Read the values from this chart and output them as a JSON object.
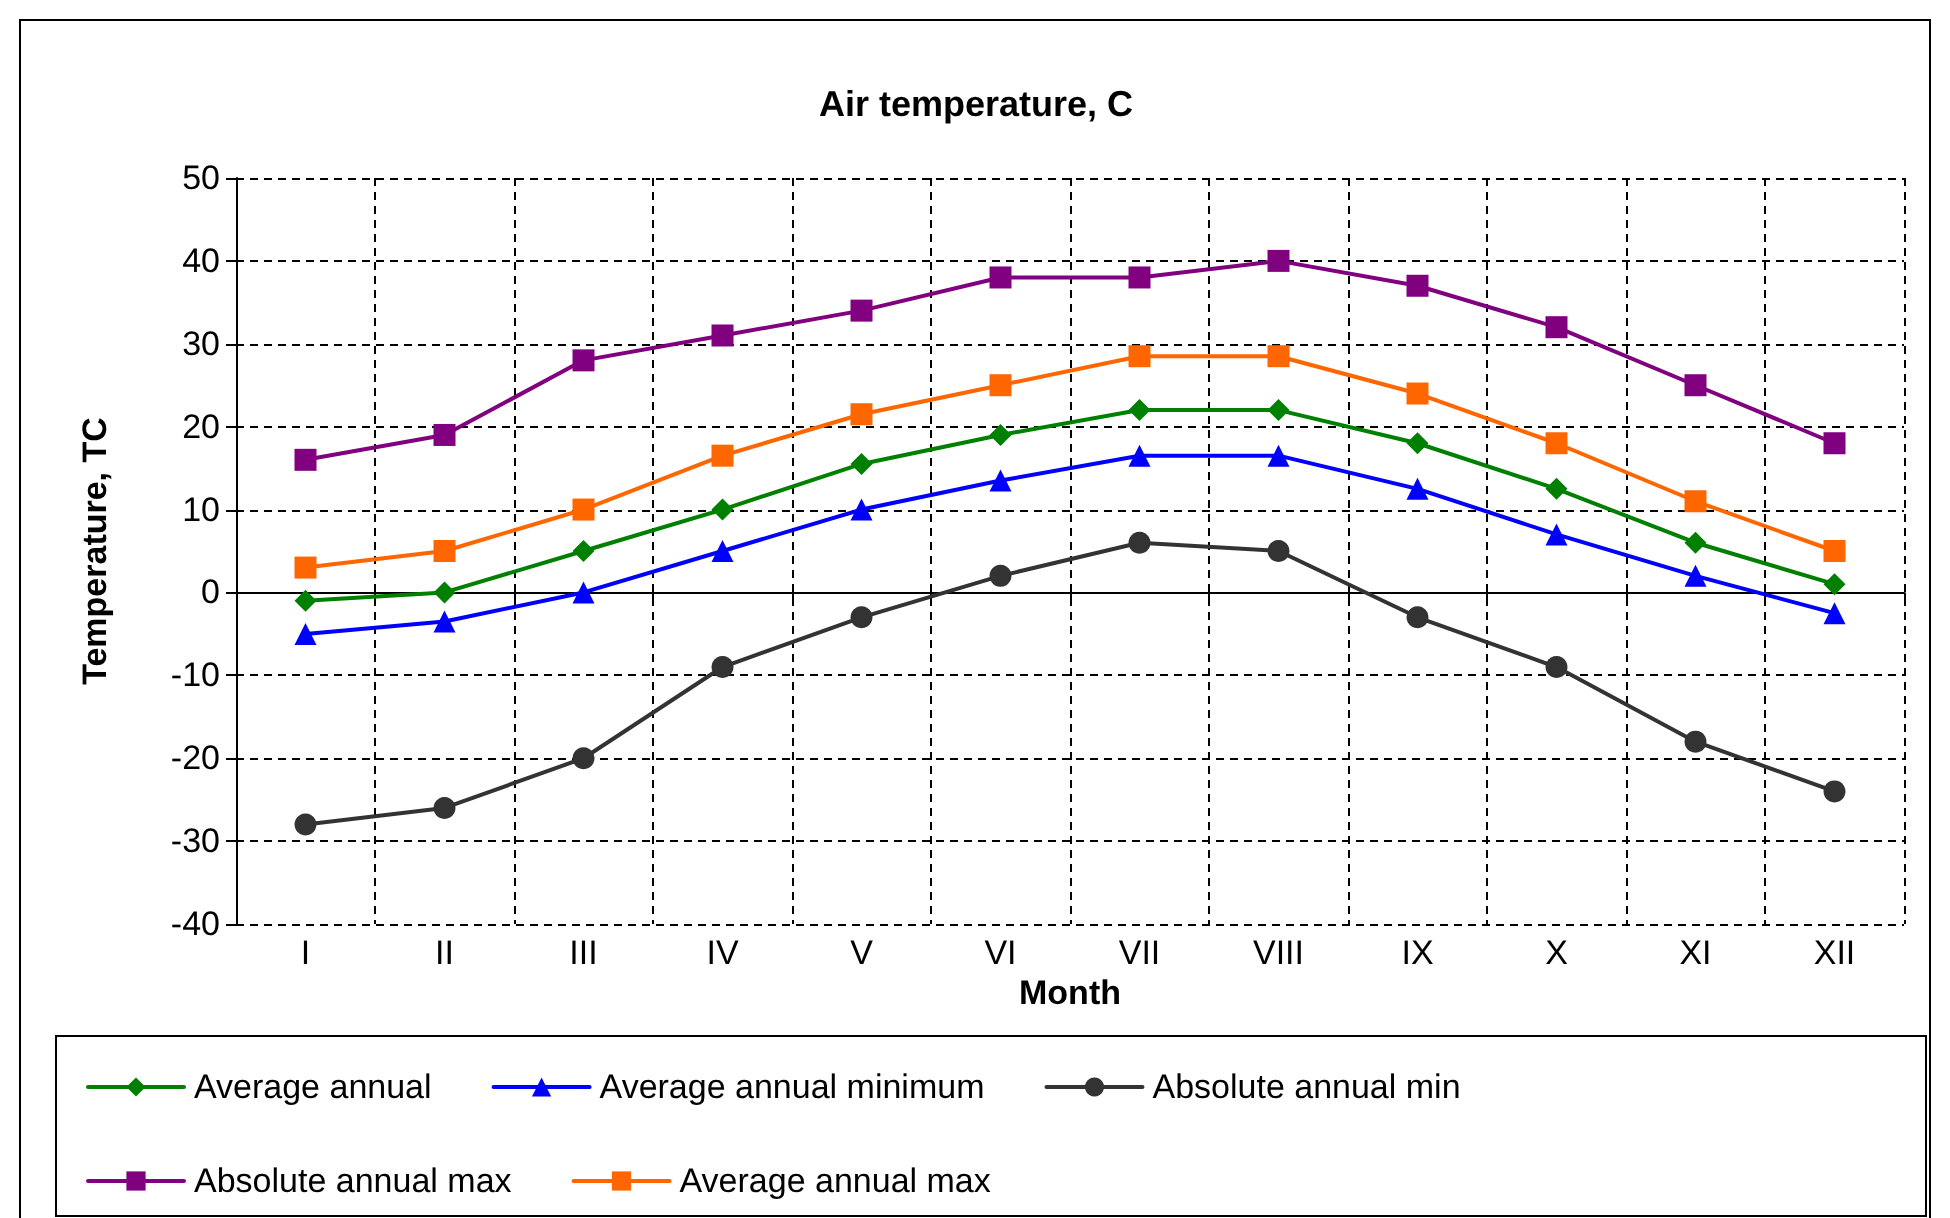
{
  "chart_data": {
    "type": "line",
    "title": "Air temperature, C",
    "xlabel": "Month",
    "ylabel": "Temperature, TC",
    "categories": [
      "I",
      "II",
      "III",
      "IV",
      "V",
      "VI",
      "VII",
      "VIII",
      "IX",
      "X",
      "XI",
      "XII"
    ],
    "series": [
      {
        "name": "Average annual",
        "color": "#008000",
        "marker": "diamond",
        "values": [
          -1,
          0,
          5,
          10,
          15.5,
          19,
          22,
          22,
          18,
          12.5,
          6,
          1
        ]
      },
      {
        "name": "Average annual minimum",
        "color": "#0000ff",
        "marker": "triangle",
        "values": [
          -5,
          -3.5,
          0,
          5,
          10,
          13.5,
          16.5,
          16.5,
          12.5,
          7,
          2,
          -2.5
        ]
      },
      {
        "name": "Absolute annual min",
        "color": "#333333",
        "marker": "circle",
        "values": [
          -28,
          -26,
          -20,
          -9,
          -3,
          2,
          6,
          5,
          -3,
          -9,
          -18,
          -24
        ]
      },
      {
        "name": "Absolute annual max",
        "color": "#800080",
        "marker": "square",
        "values": [
          16,
          19,
          28,
          31,
          34,
          38,
          38,
          40,
          37,
          32,
          25,
          18
        ]
      },
      {
        "name": "Average annual max",
        "color": "#ff6600",
        "marker": "square",
        "values": [
          3,
          5,
          10,
          16.5,
          21.5,
          25,
          28.5,
          28.5,
          24,
          18,
          11,
          5
        ]
      }
    ],
    "ylim": [
      -40,
      50
    ],
    "yticks": [
      -40,
      -30,
      -20,
      -10,
      0,
      10,
      20,
      30,
      40,
      50
    ],
    "grid": true,
    "legend": "bottom"
  }
}
